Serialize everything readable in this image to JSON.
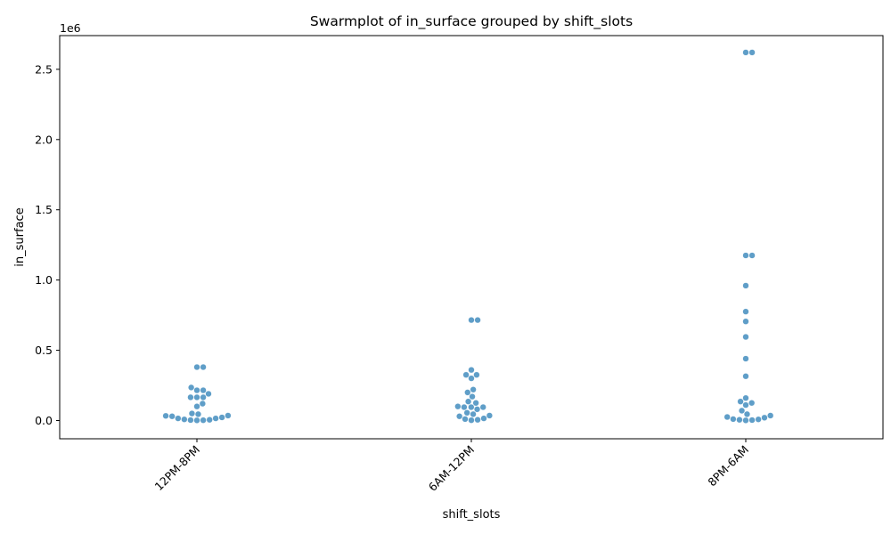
{
  "chart_data": {
    "type": "scatter",
    "title": "Swarmplot of in_surface grouped by shift_slots",
    "xlabel": "shift_slots",
    "ylabel": "in_surface",
    "y_offset_label": "1e6",
    "y_scale": 1000000,
    "ylim": [
      -130000,
      2740000
    ],
    "yticks": [
      0,
      500000,
      1000000,
      1500000,
      2000000,
      2500000
    ],
    "ytick_labels": [
      "0.0",
      "0.5",
      "1.0",
      "1.5",
      "2.0",
      "2.5"
    ],
    "categories": [
      "12PM-8PM",
      "6AM-12PM",
      "8PM-6AM"
    ],
    "tick_label_rotation": 45,
    "grid": false,
    "point_color": "#5f9ec8",
    "series": [
      {
        "category": "12PM-8PM",
        "values": [
          380000,
          380000,
          235000,
          215000,
          215000,
          190000,
          165000,
          165000,
          165000,
          120000,
          100000,
          50000,
          45000,
          35000,
          33000,
          30000,
          22000,
          15000,
          15000,
          8000,
          5000,
          3000,
          2000,
          1000
        ]
      },
      {
        "category": "6AM-12PM",
        "values": [
          715000,
          715000,
          360000,
          325000,
          325000,
          300000,
          220000,
          200000,
          170000,
          135000,
          125000,
          100000,
          95000,
          95000,
          95000,
          80000,
          55000,
          45000,
          35000,
          30000,
          15000,
          10000,
          5000,
          2000
        ]
      },
      {
        "category": "8PM-6AM",
        "values": [
          2620000,
          2620000,
          1175000,
          1175000,
          960000,
          775000,
          705000,
          595000,
          440000,
          315000,
          160000,
          135000,
          125000,
          110000,
          70000,
          45000,
          35000,
          25000,
          20000,
          10000,
          8000,
          5000,
          3000,
          1000
        ]
      }
    ]
  }
}
